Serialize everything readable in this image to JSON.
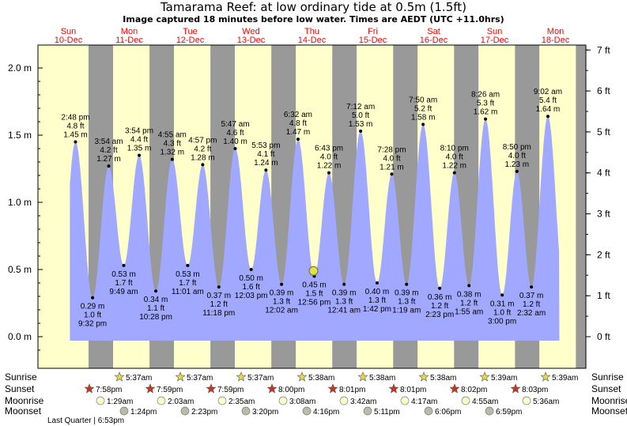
{
  "title": "Tamarama Reef: at low  ordinary tide at 0.5m (1.5ft)",
  "subtitle": "Image captured 18 minutes before low water. Times are AEDT (UTC +11.0hrs)",
  "colors": {
    "sky": "#ffffcc",
    "night": "#999999",
    "tide": "#a0a8ff",
    "day_label": "#ff0000",
    "marker": "#e0e040"
  },
  "days": [
    {
      "dow": "Sun",
      "date": "10-Dec"
    },
    {
      "dow": "Mon",
      "date": "11-Dec"
    },
    {
      "dow": "Tue",
      "date": "12-Dec"
    },
    {
      "dow": "Wed",
      "date": "13-Dec"
    },
    {
      "dow": "Thu",
      "date": "14-Dec"
    },
    {
      "dow": "Fri",
      "date": "15-Dec"
    },
    {
      "dow": "Sat",
      "date": "16-Dec"
    },
    {
      "dow": "Sun",
      "date": "17-Dec"
    },
    {
      "dow": "Mon",
      "date": "18-Dec"
    }
  ],
  "chart_data": {
    "type": "area",
    "left_axis": {
      "unit": "m",
      "ylim": [
        -0.2,
        2.15
      ],
      "ticks": [
        "0.0 m",
        "0.5 m",
        "1.0 m",
        "1.5 m",
        "2.0 m"
      ],
      "tick_values": [
        0,
        0.5,
        1.0,
        1.5,
        2.0
      ]
    },
    "right_axis": {
      "unit": "ft",
      "ticks": [
        "0 ft",
        "1 ft",
        "2 ft",
        "3 ft",
        "4 ft",
        "5 ft",
        "6 ft",
        "7 ft"
      ],
      "tick_values": [
        0,
        1,
        2,
        3,
        4,
        5,
        6,
        7
      ]
    },
    "x_axis": {
      "start": "10-Dec 00:00",
      "end": "19-Dec 00:00"
    },
    "tides": [
      {
        "type": "high",
        "day": 0,
        "time": "2:48 pm",
        "ft": "4.8 ft",
        "m": "1.45 m",
        "value": 1.45,
        "hour": 14.8
      },
      {
        "type": "low",
        "day": 0,
        "time": "9:32 pm",
        "ft": "1.0 ft",
        "m": "0.29 m",
        "value": 0.29,
        "hour": 21.53
      },
      {
        "type": "high",
        "day": 1,
        "time": "3:54 am",
        "ft": "4.2 ft",
        "m": "1.27 m",
        "value": 1.27,
        "hour": 3.9
      },
      {
        "type": "low",
        "day": 1,
        "time": "9:49 am",
        "ft": "1.7 ft",
        "m": "0.53 m",
        "value": 0.53,
        "hour": 9.82
      },
      {
        "type": "high",
        "day": 1,
        "time": "3:54 pm",
        "ft": "4.4 ft",
        "m": "1.35 m",
        "value": 1.35,
        "hour": 15.9
      },
      {
        "type": "low",
        "day": 1,
        "time": "10:28 pm",
        "ft": "1.1 ft",
        "m": "0.34 m",
        "value": 0.34,
        "hour": 22.47
      },
      {
        "type": "high",
        "day": 2,
        "time": "4:55 am",
        "ft": "4.3 ft",
        "m": "1.32 m",
        "value": 1.32,
        "hour": 4.92
      },
      {
        "type": "low",
        "day": 2,
        "time": "11:01 am",
        "ft": "1.7 ft",
        "m": "0.53 m",
        "value": 0.53,
        "hour": 11.02
      },
      {
        "type": "high",
        "day": 2,
        "time": "4:57 pm",
        "ft": "4.2 ft",
        "m": "1.28 m",
        "value": 1.28,
        "hour": 16.95
      },
      {
        "type": "low",
        "day": 2,
        "time": "11:18 pm",
        "ft": "1.2 ft",
        "m": "0.37 m",
        "value": 0.37,
        "hour": 23.3
      },
      {
        "type": "high",
        "day": 3,
        "time": "5:47 am",
        "ft": "4.6 ft",
        "m": "1.40 m",
        "value": 1.4,
        "hour": 5.78
      },
      {
        "type": "low",
        "day": 3,
        "time": "12:03 pm",
        "ft": "1.6 ft",
        "m": "0.50 m",
        "value": 0.5,
        "hour": 12.05
      },
      {
        "type": "high",
        "day": 3,
        "time": "5:53 pm",
        "ft": "4.1 ft",
        "m": "1.24 m",
        "value": 1.24,
        "hour": 17.88
      },
      {
        "type": "low",
        "day": 4,
        "time": "12:02 am",
        "ft": "1.3 ft",
        "m": "0.39 m",
        "value": 0.39,
        "hour": 0.03
      },
      {
        "type": "high",
        "day": 4,
        "time": "6:32 am",
        "ft": "4.8 ft",
        "m": "1.47 m",
        "value": 1.47,
        "hour": 6.53
      },
      {
        "type": "low",
        "day": 4,
        "time": "12:56 pm",
        "ft": "1.5 ft",
        "m": "0.45 m",
        "value": 0.45,
        "hour": 12.93
      },
      {
        "type": "high",
        "day": 4,
        "time": "6:43 pm",
        "ft": "4.0 ft",
        "m": "1.22 m",
        "value": 1.22,
        "hour": 18.72
      },
      {
        "type": "low",
        "day": 5,
        "time": "12:41 am",
        "ft": "1.3 ft",
        "m": "0.39 m",
        "value": 0.39,
        "hour": 0.68
      },
      {
        "type": "high",
        "day": 5,
        "time": "7:12 am",
        "ft": "5.0 ft",
        "m": "1.53 m",
        "value": 1.53,
        "hour": 7.2
      },
      {
        "type": "low",
        "day": 5,
        "time": "1:42 pm",
        "ft": "1.3 ft",
        "m": "0.40 m",
        "value": 0.4,
        "hour": 13.7
      },
      {
        "type": "high",
        "day": 5,
        "time": "7:28 pm",
        "ft": "4.0 ft",
        "m": "1.21 m",
        "value": 1.21,
        "hour": 19.47
      },
      {
        "type": "low",
        "day": 6,
        "time": "1:19 am",
        "ft": "1.3 ft",
        "m": "0.39 m",
        "value": 0.39,
        "hour": 1.32
      },
      {
        "type": "high",
        "day": 6,
        "time": "7:50 am",
        "ft": "5.2 ft",
        "m": "1.58 m",
        "value": 1.58,
        "hour": 7.83
      },
      {
        "type": "low",
        "day": 6,
        "time": "2:23 pm",
        "ft": "1.2 ft",
        "m": "0.36 m",
        "value": 0.36,
        "hour": 14.38
      },
      {
        "type": "high",
        "day": 6,
        "time": "8:10 pm",
        "ft": "4.0 ft",
        "m": "1.22 m",
        "value": 1.22,
        "hour": 20.17
      },
      {
        "type": "low",
        "day": 7,
        "time": "1:55 am",
        "ft": "1.2 ft",
        "m": "0.38 m",
        "value": 0.38,
        "hour": 1.92
      },
      {
        "type": "high",
        "day": 7,
        "time": "8:26 am",
        "ft": "5.3 ft",
        "m": "1.62 m",
        "value": 1.62,
        "hour": 8.43
      },
      {
        "type": "low",
        "day": 7,
        "time": "3:00 pm",
        "ft": "1.0 ft",
        "m": "0.31 m",
        "value": 0.31,
        "hour": 15.0
      },
      {
        "type": "high",
        "day": 7,
        "time": "8:50 pm",
        "ft": "4.0 ft",
        "m": "1.23 m",
        "value": 1.23,
        "hour": 20.83
      },
      {
        "type": "low",
        "day": 8,
        "time": "2:32 am",
        "ft": "1.2 ft",
        "m": "0.37 m",
        "value": 0.37,
        "hour": 2.53
      },
      {
        "type": "high",
        "day": 8,
        "time": "9:02 am",
        "ft": "5.4 ft",
        "m": "1.64 m",
        "value": 1.64,
        "hour": 9.03
      }
    ],
    "current": {
      "day": 4,
      "hour": 12.63,
      "value": 0.49
    }
  },
  "bottom": {
    "labels": {
      "sunrise": "Sunrise",
      "sunset": "Sunset",
      "moonrise": "Moonrise",
      "moonset": "Moonset"
    },
    "sunrise": [
      {
        "day": 1,
        "time": "5:37am"
      },
      {
        "day": 2,
        "time": "5:37am"
      },
      {
        "day": 3,
        "time": "5:37am"
      },
      {
        "day": 4,
        "time": "5:38am"
      },
      {
        "day": 5,
        "time": "5:38am"
      },
      {
        "day": 6,
        "time": "5:38am"
      },
      {
        "day": 7,
        "time": "5:39am"
      },
      {
        "day": 8,
        "time": "5:39am"
      }
    ],
    "sunset": [
      {
        "day": 1,
        "time": "7:58pm"
      },
      {
        "day": 2,
        "time": "7:59pm"
      },
      {
        "day": 3,
        "time": "7:59pm"
      },
      {
        "day": 4,
        "time": "8:00pm"
      },
      {
        "day": 5,
        "time": "8:01pm"
      },
      {
        "day": 6,
        "time": "8:01pm"
      },
      {
        "day": 7,
        "time": "8:02pm"
      },
      {
        "day": 8,
        "time": "8:03pm"
      }
    ],
    "moonrise": [
      {
        "day": 1,
        "time": "1:29am"
      },
      {
        "day": 2,
        "time": "2:03am"
      },
      {
        "day": 3,
        "time": "2:35am"
      },
      {
        "day": 4,
        "time": "3:08am"
      },
      {
        "day": 5,
        "time": "3:42am"
      },
      {
        "day": 6,
        "time": "4:17am"
      },
      {
        "day": 7,
        "time": "4:55am"
      },
      {
        "day": 8,
        "time": "5:36am"
      }
    ],
    "moonset": [
      {
        "day": 1,
        "time": "1:24pm"
      },
      {
        "day": 2,
        "time": "2:23pm"
      },
      {
        "day": 3,
        "time": "3:20pm"
      },
      {
        "day": 4,
        "time": "4:16pm"
      },
      {
        "day": 5,
        "time": "5:11pm"
      },
      {
        "day": 6,
        "time": "6:06pm"
      },
      {
        "day": 7,
        "time": "6:59pm"
      }
    ],
    "moon_phase": "Last Quarter | 6:53pm"
  }
}
